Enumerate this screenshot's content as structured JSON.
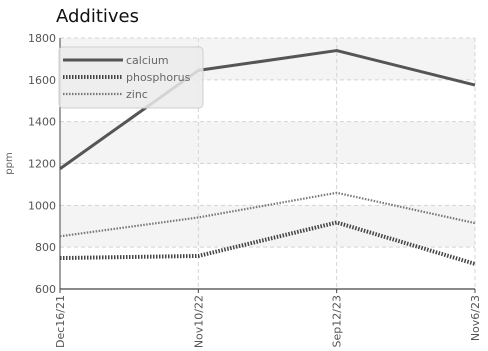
{
  "chart_data": {
    "type": "line",
    "title": "Additives",
    "xlabel": "",
    "ylabel": "ppm",
    "categories": [
      "Dec16/21",
      "Nov10/22",
      "Sep12/23",
      "Nov6/23"
    ],
    "ylim": [
      600,
      1800
    ],
    "yticks": [
      600,
      800,
      1000,
      1200,
      1400,
      1600,
      1800
    ],
    "grid": true,
    "legend_position": "top-left",
    "series": [
      {
        "name": "calcium",
        "values": [
          1175,
          1645,
          1740,
          1575
        ],
        "color": "#555555",
        "style": "solid"
      },
      {
        "name": "phosphorus",
        "values": [
          748,
          758,
          918,
          720
        ],
        "color": "#444444",
        "style": "dotted"
      },
      {
        "name": "zinc",
        "values": [
          852,
          942,
          1060,
          915
        ],
        "color": "#777777",
        "style": "dotted-thin"
      }
    ]
  }
}
